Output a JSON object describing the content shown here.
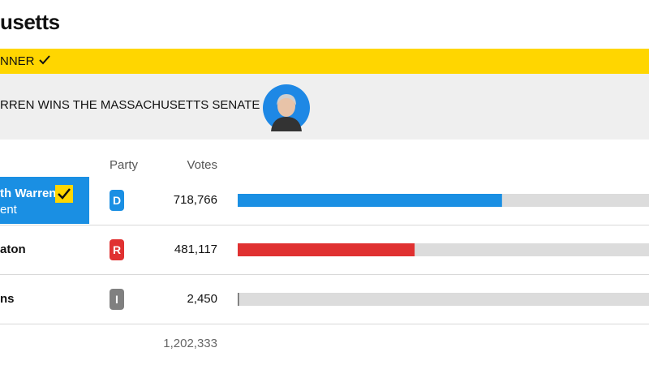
{
  "header": {
    "title": "usetts",
    "banner": "NNER",
    "headline": "RREN WINS THE MASSACHUSETTS SENATE RACE"
  },
  "table": {
    "party_header": "Party",
    "votes_header": "Votes",
    "candidates": [
      {
        "name": "th Warren",
        "note": "ent",
        "party": "D",
        "party_color": "#1a8fe3",
        "votes": 718766,
        "votes_label": "718,766",
        "winner": true
      },
      {
        "name": "aton",
        "note": null,
        "party": "R",
        "party_color": "#e03131",
        "votes": 481117,
        "votes_label": "481,117",
        "winner": false
      },
      {
        "name": "ns",
        "note": null,
        "party": "I",
        "party_color": "#808080",
        "votes": 2450,
        "votes_label": "2,450",
        "winner": false
      }
    ],
    "total": 1202333,
    "total_label": "1,202,333"
  }
}
